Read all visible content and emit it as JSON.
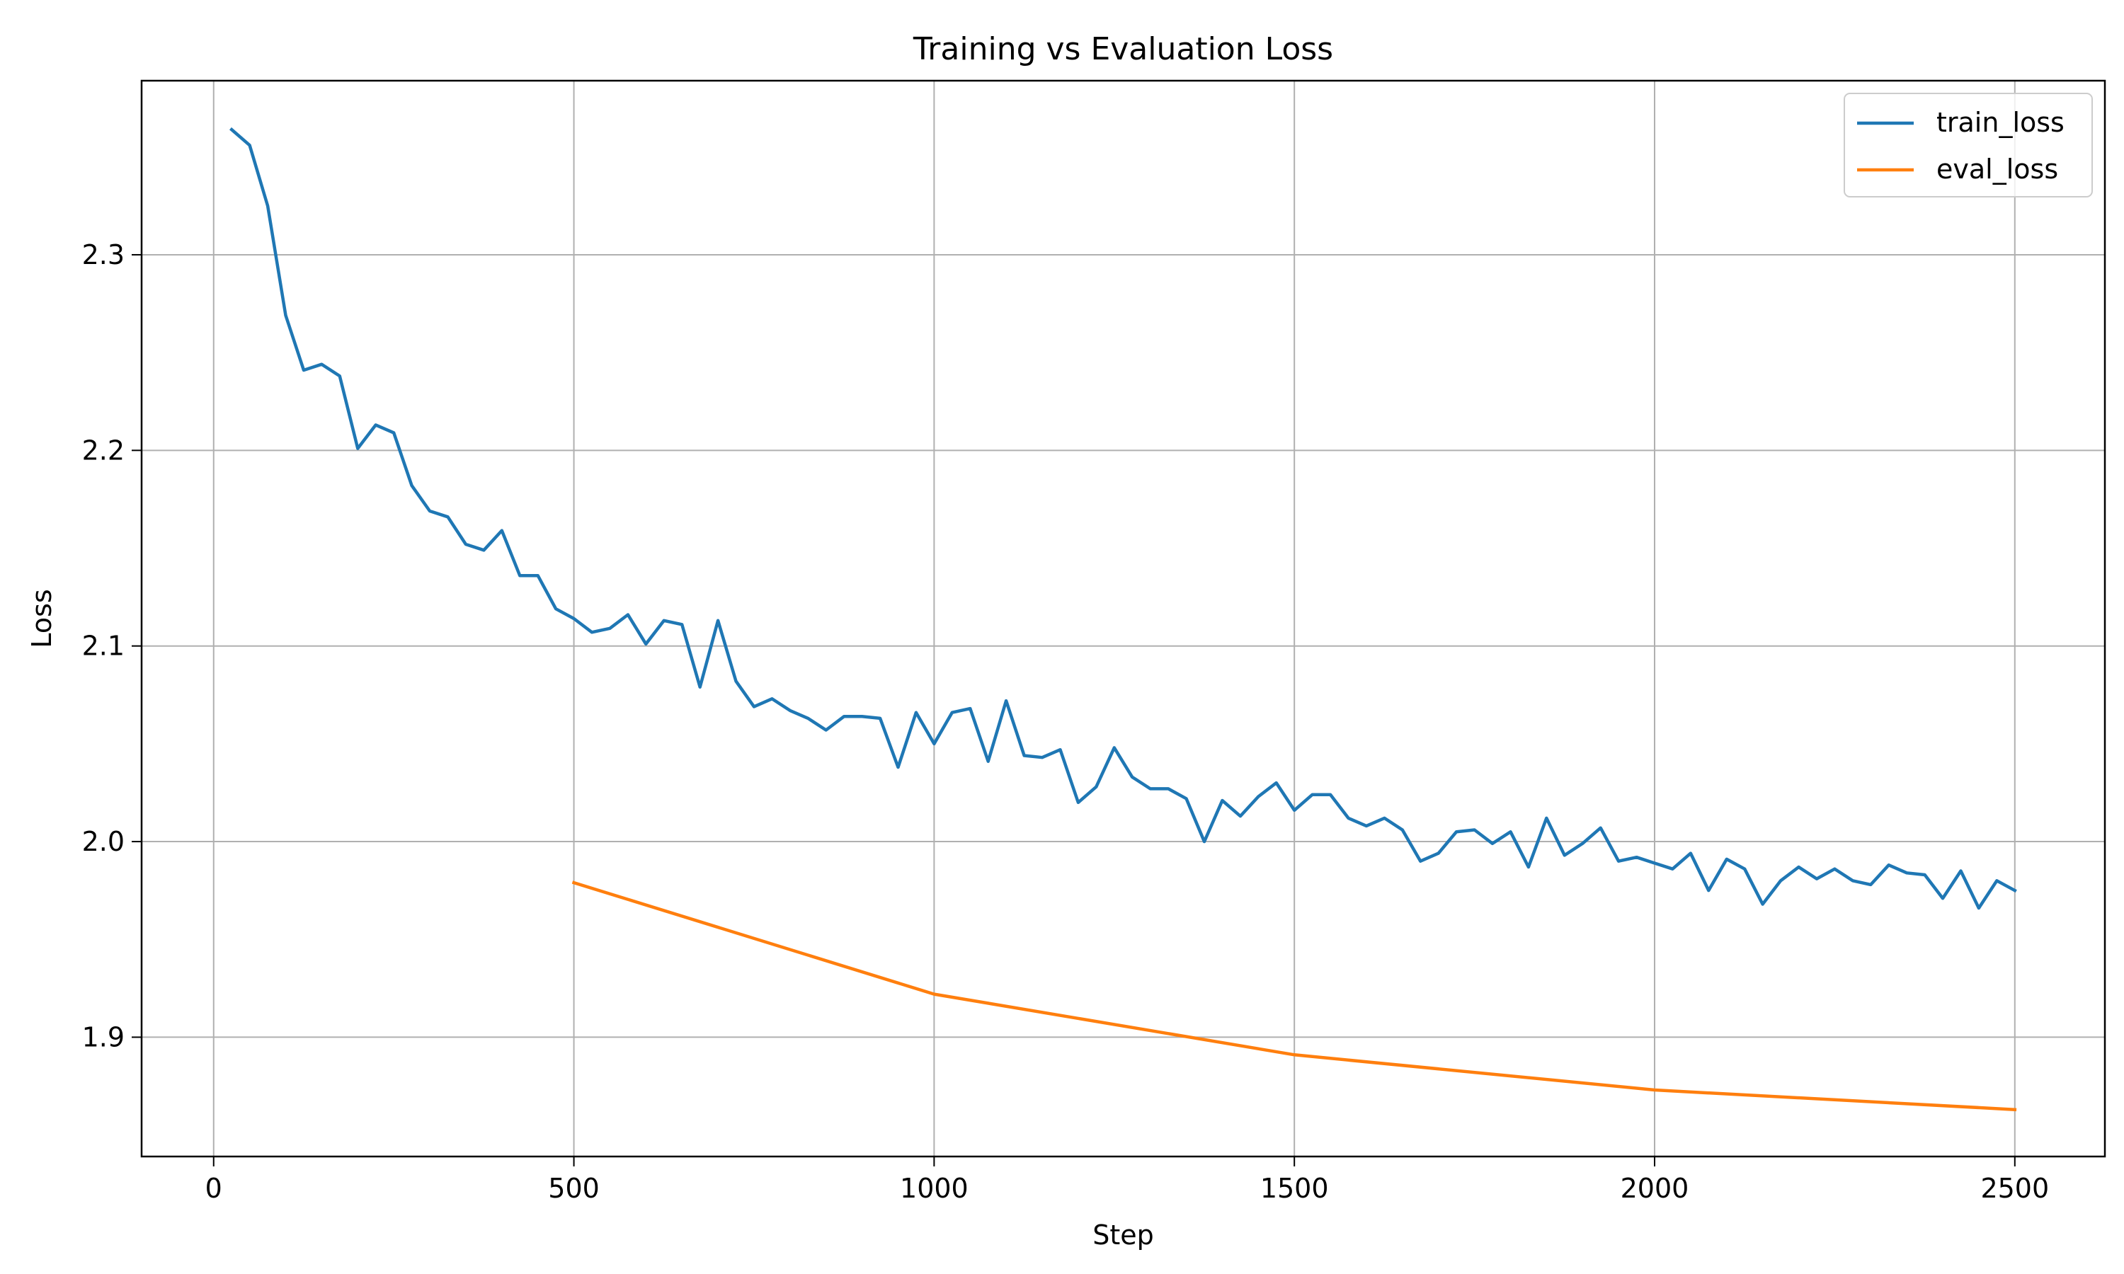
{
  "chart_data": {
    "type": "line",
    "title": "Training vs Evaluation Loss",
    "xlabel": "Step",
    "ylabel": "Loss",
    "xlim": [
      -100,
      2625
    ],
    "ylim": [
      1.839,
      2.389
    ],
    "xticks": [
      0,
      500,
      1000,
      1500,
      2000,
      2500
    ],
    "xtick_labels": [
      "0",
      "500",
      "1000",
      "1500",
      "2000",
      "2500"
    ],
    "yticks": [
      1.9,
      2.0,
      2.1,
      2.2,
      2.3
    ],
    "ytick_labels": [
      "1.9",
      "2.0",
      "2.1",
      "2.2",
      "2.3"
    ],
    "grid": true,
    "legend_position": "top-right",
    "series": [
      {
        "name": "train_loss",
        "color": "#1f77b4",
        "x": [
          25,
          50,
          75,
          100,
          125,
          150,
          175,
          200,
          225,
          250,
          275,
          300,
          325,
          350,
          375,
          400,
          425,
          450,
          475,
          500,
          525,
          550,
          575,
          600,
          625,
          650,
          675,
          700,
          725,
          750,
          775,
          800,
          825,
          850,
          875,
          900,
          925,
          950,
          975,
          1000,
          1025,
          1050,
          1075,
          1100,
          1125,
          1150,
          1175,
          1200,
          1225,
          1250,
          1275,
          1300,
          1325,
          1350,
          1375,
          1400,
          1425,
          1450,
          1475,
          1500,
          1525,
          1550,
          1575,
          1600,
          1625,
          1650,
          1675,
          1700,
          1725,
          1750,
          1775,
          1800,
          1825,
          1850,
          1875,
          1900,
          1925,
          1950,
          1975,
          2000,
          2025,
          2050,
          2075,
          2100,
          2125,
          2150,
          2175,
          2200,
          2225,
          2250,
          2275,
          2300,
          2325,
          2350,
          2375,
          2400,
          2425,
          2450,
          2475,
          2500
        ],
        "values": [
          2.364,
          2.356,
          2.325,
          2.269,
          2.241,
          2.244,
          2.238,
          2.201,
          2.213,
          2.209,
          2.182,
          2.169,
          2.166,
          2.152,
          2.149,
          2.159,
          2.136,
          2.136,
          2.119,
          2.114,
          2.107,
          2.109,
          2.116,
          2.101,
          2.113,
          2.111,
          2.079,
          2.113,
          2.082,
          2.069,
          2.073,
          2.067,
          2.063,
          2.057,
          2.064,
          2.064,
          2.063,
          2.038,
          2.066,
          2.05,
          2.066,
          2.068,
          2.041,
          2.072,
          2.044,
          2.043,
          2.047,
          2.02,
          2.028,
          2.048,
          2.033,
          2.027,
          2.027,
          2.022,
          2.0,
          2.021,
          2.013,
          2.023,
          2.03,
          2.016,
          2.024,
          2.024,
          2.012,
          2.008,
          2.012,
          2.006,
          1.99,
          1.994,
          2.005,
          2.006,
          1.999,
          2.005,
          1.987,
          2.012,
          1.993,
          1.999,
          2.007,
          1.99,
          1.992,
          1.989,
          1.986,
          1.994,
          1.975,
          1.991,
          1.986,
          1.968,
          1.98,
          1.987,
          1.981,
          1.986,
          1.98,
          1.978,
          1.988,
          1.984,
          1.983,
          1.971,
          1.985,
          1.966,
          1.98,
          1.975
        ]
      },
      {
        "name": "eval_loss",
        "color": "#ff7f0e",
        "x": [
          500,
          1000,
          1500,
          2000,
          2500
        ],
        "values": [
          1.979,
          1.922,
          1.891,
          1.873,
          1.863
        ]
      }
    ]
  }
}
